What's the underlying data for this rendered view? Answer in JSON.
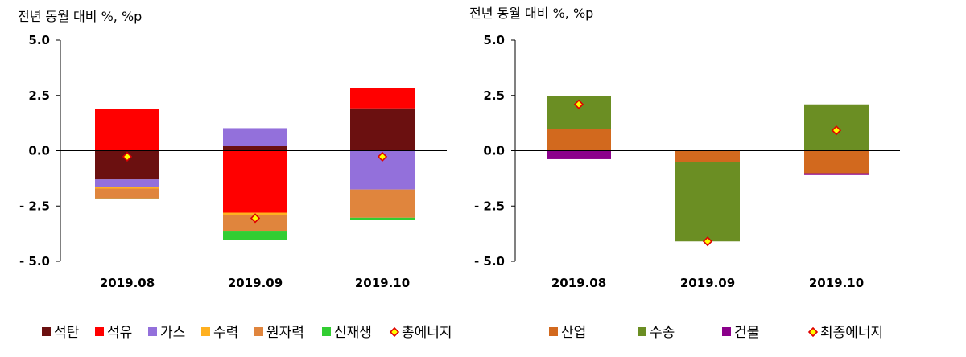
{
  "chart_data": [
    {
      "type": "bar",
      "stacked": true,
      "ylabel": "전년 동월 대비 %, %p",
      "ylim": [
        -5.0,
        5.0
      ],
      "yticks": [
        "5.0",
        "2.5",
        "0.0",
        "- 2.5",
        "- 5.0"
      ],
      "ytick_values": [
        5.0,
        2.5,
        0.0,
        -2.5,
        -5.0
      ],
      "categories": [
        "2019.08",
        "2019.09",
        "2019.10"
      ],
      "legend_position": "bottom",
      "series": [
        {
          "name": "석탄",
          "color": "#6B1010",
          "values": [
            -1.3,
            0.22,
            1.92
          ]
        },
        {
          "name": "석유",
          "color": "#FF0000",
          "values": [
            1.9,
            -2.8,
            0.92
          ]
        },
        {
          "name": "가스",
          "color": "#9370DB",
          "values": [
            -0.33,
            0.8,
            -1.75
          ]
        },
        {
          "name": "수력",
          "color": "#FFB020",
          "values": [
            -0.08,
            -0.12,
            0.0
          ]
        },
        {
          "name": "원자력",
          "color": "#E0853D",
          "values": [
            -0.45,
            -0.7,
            -1.28
          ]
        },
        {
          "name": "신재생",
          "color": "#32CD32",
          "values": [
            -0.02,
            -0.42,
            -0.1
          ]
        }
      ],
      "total": {
        "name": "총에너지",
        "values": [
          -0.27,
          -3.05,
          -0.27
        ]
      }
    },
    {
      "type": "bar",
      "stacked": true,
      "ylabel": "전년 동월 대비 %, %p",
      "ylim": [
        -5.0,
        5.0
      ],
      "yticks": [
        "5.0",
        "2.5",
        "0.0",
        "- 2.5",
        "- 5.0"
      ],
      "ytick_values": [
        5.0,
        2.5,
        0.0,
        -2.5,
        -5.0
      ],
      "categories": [
        "2019.08",
        "2019.09",
        "2019.10"
      ],
      "legend_position": "bottom",
      "series": [
        {
          "name": "산업",
          "color": "#D2691E",
          "values": [
            0.98,
            -0.5,
            -1.02
          ]
        },
        {
          "name": "수송",
          "color": "#6B8E23",
          "values": [
            1.5,
            -3.6,
            2.1
          ]
        },
        {
          "name": "건물",
          "color": "#8B008B",
          "values": [
            -0.38,
            0.0,
            -0.08
          ]
        }
      ],
      "total": {
        "name": "최종에너지",
        "values": [
          2.1,
          -4.1,
          0.92
        ]
      }
    }
  ]
}
